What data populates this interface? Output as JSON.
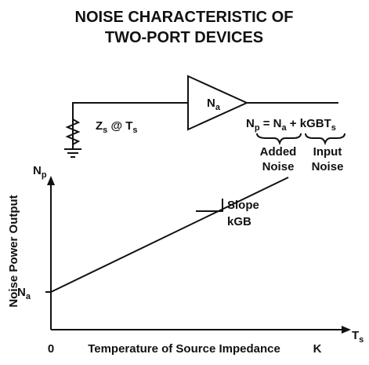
{
  "title": [
    "NOISE CHARACTERISTIC OF",
    "TWO-PORT DEVICES"
  ],
  "amplifier": {
    "label": [
      "N",
      "a"
    ]
  },
  "source": {
    "label": [
      "Z",
      "s",
      " @ T",
      "s"
    ]
  },
  "equation": [
    "N",
    "p",
    " = N",
    "a",
    " + kGBT",
    "s"
  ],
  "annotations": [
    [
      "Added",
      "Noise"
    ],
    [
      "Input",
      "Noise"
    ]
  ],
  "graph": {
    "y_axis_symbol": [
      "N",
      "p"
    ],
    "x_axis_symbol": [
      "T",
      "s"
    ],
    "y_axis_title": "Noise Power Output",
    "x_axis_title": "Temperature of Source Impedance",
    "origin_label": "0",
    "x_end_label": "K",
    "intercept_label": [
      "N",
      "a"
    ],
    "slope_label": [
      "Slope",
      "kGB"
    ]
  }
}
